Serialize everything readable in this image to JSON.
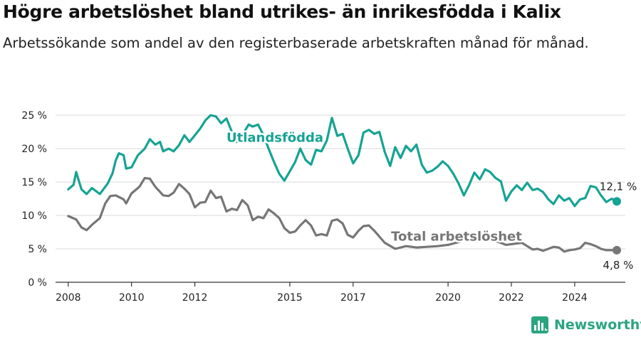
{
  "title": "Högre arbetslöshet bland utrikes- än inrikesfödda i Kalix",
  "subtitle": "Arbetssökande som andel av den registerbaserade arbetskraften månad för månad.",
  "brand": {
    "name": "Newsworthy"
  },
  "colors": {
    "foreign": "#16a394",
    "total": "#767676",
    "grid": "#d8d8d8",
    "axis": "#333333"
  },
  "chart_data": {
    "type": "line",
    "title": "Högre arbetslöshet bland utrikes- än inrikesfödda i Kalix",
    "subtitle": "Arbetssökande som andel av den registerbaserade arbetskraften månad för månad.",
    "xlabel": "",
    "ylabel": "",
    "ylim": [
      0,
      25
    ],
    "xlim": [
      2007.6,
      2025.6
    ],
    "yticks": [
      0,
      5,
      10,
      15,
      20,
      25
    ],
    "ytick_labels": [
      "0 %",
      "5 %",
      "10 %",
      "15 %",
      "20 %",
      "25 %"
    ],
    "xticks": [
      2008,
      2010,
      2012,
      2015,
      2017,
      2020,
      2022,
      2024
    ],
    "xtick_labels": [
      "2008",
      "2010",
      "2012",
      "2015",
      "2017",
      "2020",
      "2022",
      "2024"
    ],
    "grid": true,
    "legend": "direct labels",
    "series": [
      {
        "name": "Utlandsfödda",
        "color": "#16a394",
        "end_label": "12,1 %",
        "points": [
          [
            2008.0,
            13.9
          ],
          [
            2008.17,
            14.6
          ],
          [
            2008.25,
            16.5
          ],
          [
            2008.42,
            13.9
          ],
          [
            2008.58,
            13.2
          ],
          [
            2008.75,
            14.1
          ],
          [
            2009.0,
            13.2
          ],
          [
            2009.25,
            14.8
          ],
          [
            2009.4,
            16.3
          ],
          [
            2009.5,
            18.2
          ],
          [
            2009.6,
            19.3
          ],
          [
            2009.75,
            19.0
          ],
          [
            2009.83,
            17.0
          ],
          [
            2010.0,
            17.2
          ],
          [
            2010.2,
            19.0
          ],
          [
            2010.42,
            20.0
          ],
          [
            2010.58,
            21.4
          ],
          [
            2010.75,
            20.6
          ],
          [
            2010.9,
            21.0
          ],
          [
            2011.0,
            19.6
          ],
          [
            2011.17,
            20.0
          ],
          [
            2011.33,
            19.6
          ],
          [
            2011.5,
            20.5
          ],
          [
            2011.67,
            22.0
          ],
          [
            2011.83,
            21.0
          ],
          [
            2012.0,
            22.0
          ],
          [
            2012.17,
            23.0
          ],
          [
            2012.33,
            24.2
          ],
          [
            2012.5,
            25.0
          ],
          [
            2012.67,
            24.8
          ],
          [
            2012.83,
            23.8
          ],
          [
            2013.0,
            24.5
          ],
          [
            2013.17,
            22.5
          ],
          [
            2013.33,
            21.0
          ],
          [
            2013.5,
            22.0
          ],
          [
            2013.7,
            23.6
          ],
          [
            2013.83,
            23.3
          ],
          [
            2014.0,
            23.6
          ],
          [
            2014.17,
            22.0
          ],
          [
            2014.33,
            20.0
          ],
          [
            2014.5,
            18.0
          ],
          [
            2014.67,
            16.2
          ],
          [
            2014.83,
            15.2
          ],
          [
            2015.0,
            16.6
          ],
          [
            2015.17,
            18.0
          ],
          [
            2015.33,
            20.0
          ],
          [
            2015.5,
            18.3
          ],
          [
            2015.67,
            17.6
          ],
          [
            2015.83,
            19.8
          ],
          [
            2016.0,
            19.6
          ],
          [
            2016.17,
            21.2
          ],
          [
            2016.33,
            24.6
          ],
          [
            2016.5,
            21.9
          ],
          [
            2016.67,
            22.2
          ],
          [
            2016.83,
            20.0
          ],
          [
            2017.0,
            17.8
          ],
          [
            2017.17,
            19.0
          ],
          [
            2017.33,
            22.4
          ],
          [
            2017.5,
            22.8
          ],
          [
            2017.67,
            22.2
          ],
          [
            2017.83,
            22.5
          ],
          [
            2018.0,
            19.5
          ],
          [
            2018.17,
            17.4
          ],
          [
            2018.33,
            20.2
          ],
          [
            2018.5,
            18.6
          ],
          [
            2018.67,
            20.4
          ],
          [
            2018.83,
            19.6
          ],
          [
            2019.0,
            20.6
          ],
          [
            2019.17,
            17.6
          ],
          [
            2019.33,
            16.4
          ],
          [
            2019.5,
            16.7
          ],
          [
            2019.67,
            17.3
          ],
          [
            2019.83,
            18.1
          ],
          [
            2020.0,
            17.4
          ],
          [
            2020.17,
            16.2
          ],
          [
            2020.33,
            14.8
          ],
          [
            2020.5,
            13.0
          ],
          [
            2020.67,
            14.6
          ],
          [
            2020.83,
            16.4
          ],
          [
            2021.0,
            15.4
          ],
          [
            2021.17,
            16.9
          ],
          [
            2021.33,
            16.5
          ],
          [
            2021.5,
            15.6
          ],
          [
            2021.67,
            15.1
          ],
          [
            2021.83,
            12.2
          ],
          [
            2022.0,
            13.6
          ],
          [
            2022.17,
            14.5
          ],
          [
            2022.33,
            13.8
          ],
          [
            2022.5,
            14.9
          ],
          [
            2022.67,
            13.8
          ],
          [
            2022.83,
            14.0
          ],
          [
            2023.0,
            13.5
          ],
          [
            2023.17,
            12.4
          ],
          [
            2023.33,
            11.7
          ],
          [
            2023.5,
            13.0
          ],
          [
            2023.67,
            12.2
          ],
          [
            2023.83,
            12.6
          ],
          [
            2024.0,
            11.4
          ],
          [
            2024.17,
            12.4
          ],
          [
            2024.33,
            12.6
          ],
          [
            2024.5,
            14.4
          ],
          [
            2024.67,
            14.2
          ],
          [
            2024.83,
            13.0
          ],
          [
            2025.0,
            12.0
          ],
          [
            2025.17,
            12.5
          ],
          [
            2025.33,
            12.1
          ]
        ]
      },
      {
        "name": "Total arbetslöshet",
        "color": "#767676",
        "end_label": "4,8 %",
        "points": [
          [
            2008.0,
            9.9
          ],
          [
            2008.25,
            9.4
          ],
          [
            2008.42,
            8.2
          ],
          [
            2008.58,
            7.8
          ],
          [
            2008.75,
            8.6
          ],
          [
            2009.0,
            9.6
          ],
          [
            2009.17,
            11.8
          ],
          [
            2009.33,
            12.9
          ],
          [
            2009.5,
            13.0
          ],
          [
            2009.75,
            12.4
          ],
          [
            2009.83,
            11.8
          ],
          [
            2010.0,
            13.3
          ],
          [
            2010.25,
            14.3
          ],
          [
            2010.42,
            15.6
          ],
          [
            2010.58,
            15.5
          ],
          [
            2010.75,
            14.3
          ],
          [
            2011.0,
            13.0
          ],
          [
            2011.17,
            12.9
          ],
          [
            2011.33,
            13.4
          ],
          [
            2011.5,
            14.7
          ],
          [
            2011.67,
            14.0
          ],
          [
            2011.83,
            13.2
          ],
          [
            2012.0,
            11.2
          ],
          [
            2012.17,
            11.9
          ],
          [
            2012.33,
            12.0
          ],
          [
            2012.5,
            13.7
          ],
          [
            2012.67,
            12.6
          ],
          [
            2012.83,
            12.8
          ],
          [
            2013.0,
            10.6
          ],
          [
            2013.17,
            11.0
          ],
          [
            2013.33,
            10.8
          ],
          [
            2013.5,
            12.3
          ],
          [
            2013.67,
            11.5
          ],
          [
            2013.83,
            9.3
          ],
          [
            2014.0,
            9.8
          ],
          [
            2014.17,
            9.6
          ],
          [
            2014.33,
            10.9
          ],
          [
            2014.5,
            10.3
          ],
          [
            2014.67,
            9.6
          ],
          [
            2014.83,
            8.1
          ],
          [
            2015.0,
            7.4
          ],
          [
            2015.17,
            7.6
          ],
          [
            2015.33,
            8.5
          ],
          [
            2015.5,
            9.3
          ],
          [
            2015.67,
            8.5
          ],
          [
            2015.83,
            7.0
          ],
          [
            2016.0,
            7.2
          ],
          [
            2016.17,
            7.0
          ],
          [
            2016.33,
            9.2
          ],
          [
            2016.5,
            9.4
          ],
          [
            2016.67,
            8.8
          ],
          [
            2016.83,
            7.1
          ],
          [
            2017.0,
            6.7
          ],
          [
            2017.17,
            7.7
          ],
          [
            2017.33,
            8.4
          ],
          [
            2017.5,
            8.5
          ],
          [
            2017.67,
            7.7
          ],
          [
            2018.0,
            5.9
          ],
          [
            2018.33,
            5.0
          ],
          [
            2018.67,
            5.4
          ],
          [
            2019.0,
            5.2
          ],
          [
            2019.33,
            5.3
          ],
          [
            2019.67,
            5.4
          ],
          [
            2020.0,
            5.6
          ],
          [
            2020.33,
            6.0
          ],
          [
            2020.67,
            6.6
          ],
          [
            2021.0,
            7.4
          ],
          [
            2021.25,
            7.0
          ],
          [
            2021.5,
            6.2
          ],
          [
            2021.83,
            5.6
          ],
          [
            2022.0,
            5.7
          ],
          [
            2022.33,
            5.9
          ],
          [
            2022.5,
            5.4
          ],
          [
            2022.67,
            4.9
          ],
          [
            2022.83,
            5.0
          ],
          [
            2023.0,
            4.7
          ],
          [
            2023.33,
            5.3
          ],
          [
            2023.5,
            5.2
          ],
          [
            2023.67,
            4.6
          ],
          [
            2023.83,
            4.8
          ],
          [
            2024.0,
            4.9
          ],
          [
            2024.17,
            5.1
          ],
          [
            2024.33,
            5.9
          ],
          [
            2024.5,
            5.7
          ],
          [
            2024.67,
            5.4
          ],
          [
            2024.83,
            5.0
          ],
          [
            2025.0,
            4.8
          ],
          [
            2025.33,
            4.8
          ]
        ]
      }
    ],
    "annotations": [
      {
        "text": "Utlandsfödda",
        "x": 2013.0,
        "y": 21.0,
        "series": 0
      },
      {
        "text": "Total arbetslöshet",
        "x": 2018.2,
        "y": 6.2,
        "series": 1
      }
    ]
  }
}
